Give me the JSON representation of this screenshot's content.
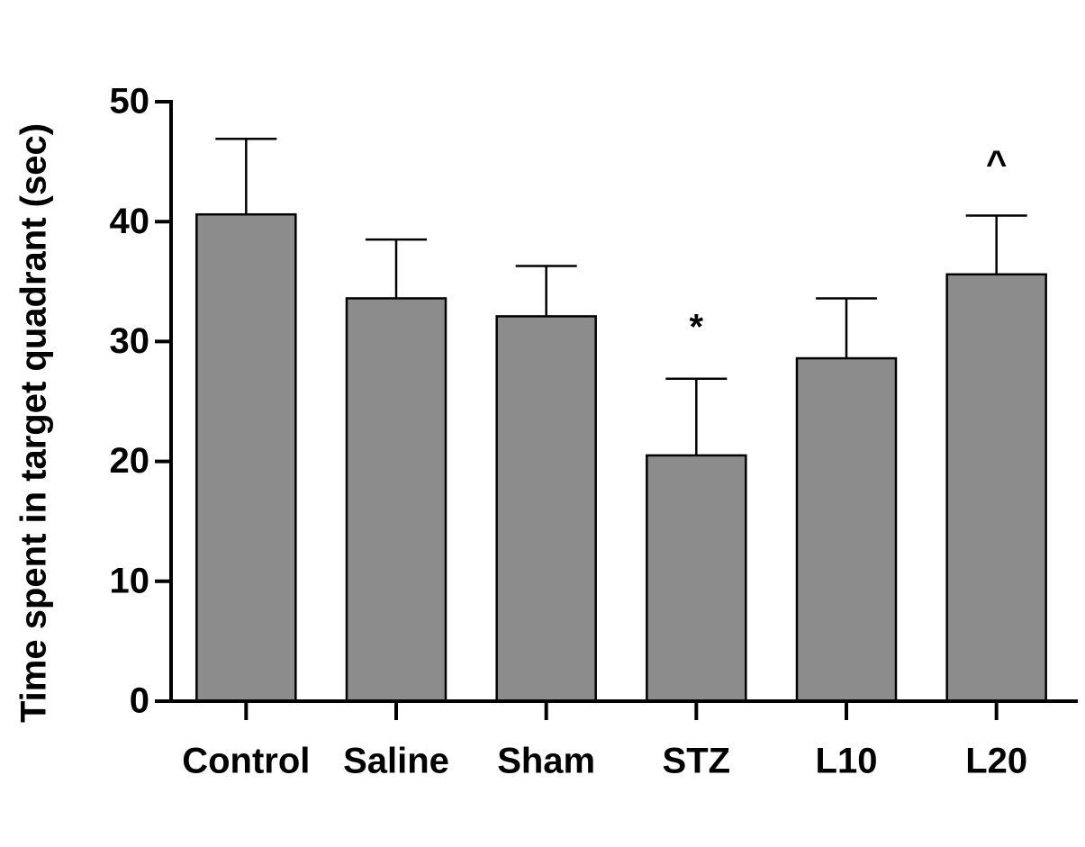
{
  "chart_data": {
    "type": "bar",
    "y_label": "Time spent in target quadrant (sec)",
    "categories": [
      "Control",
      "Saline",
      "Sham",
      "STZ",
      "L10",
      "L20"
    ],
    "values": [
      40.6,
      33.6,
      32.1,
      20.5,
      28.6,
      35.6
    ],
    "errors": [
      6.3,
      4.9,
      4.2,
      6.4,
      5.0,
      4.9
    ],
    "annotations": [
      null,
      null,
      null,
      "*",
      null,
      "^"
    ],
    "color": "#8c8c8c",
    "ylim": [
      0,
      50
    ],
    "yticks": [
      0,
      10,
      20,
      30,
      40,
      50
    ],
    "grid": false
  }
}
